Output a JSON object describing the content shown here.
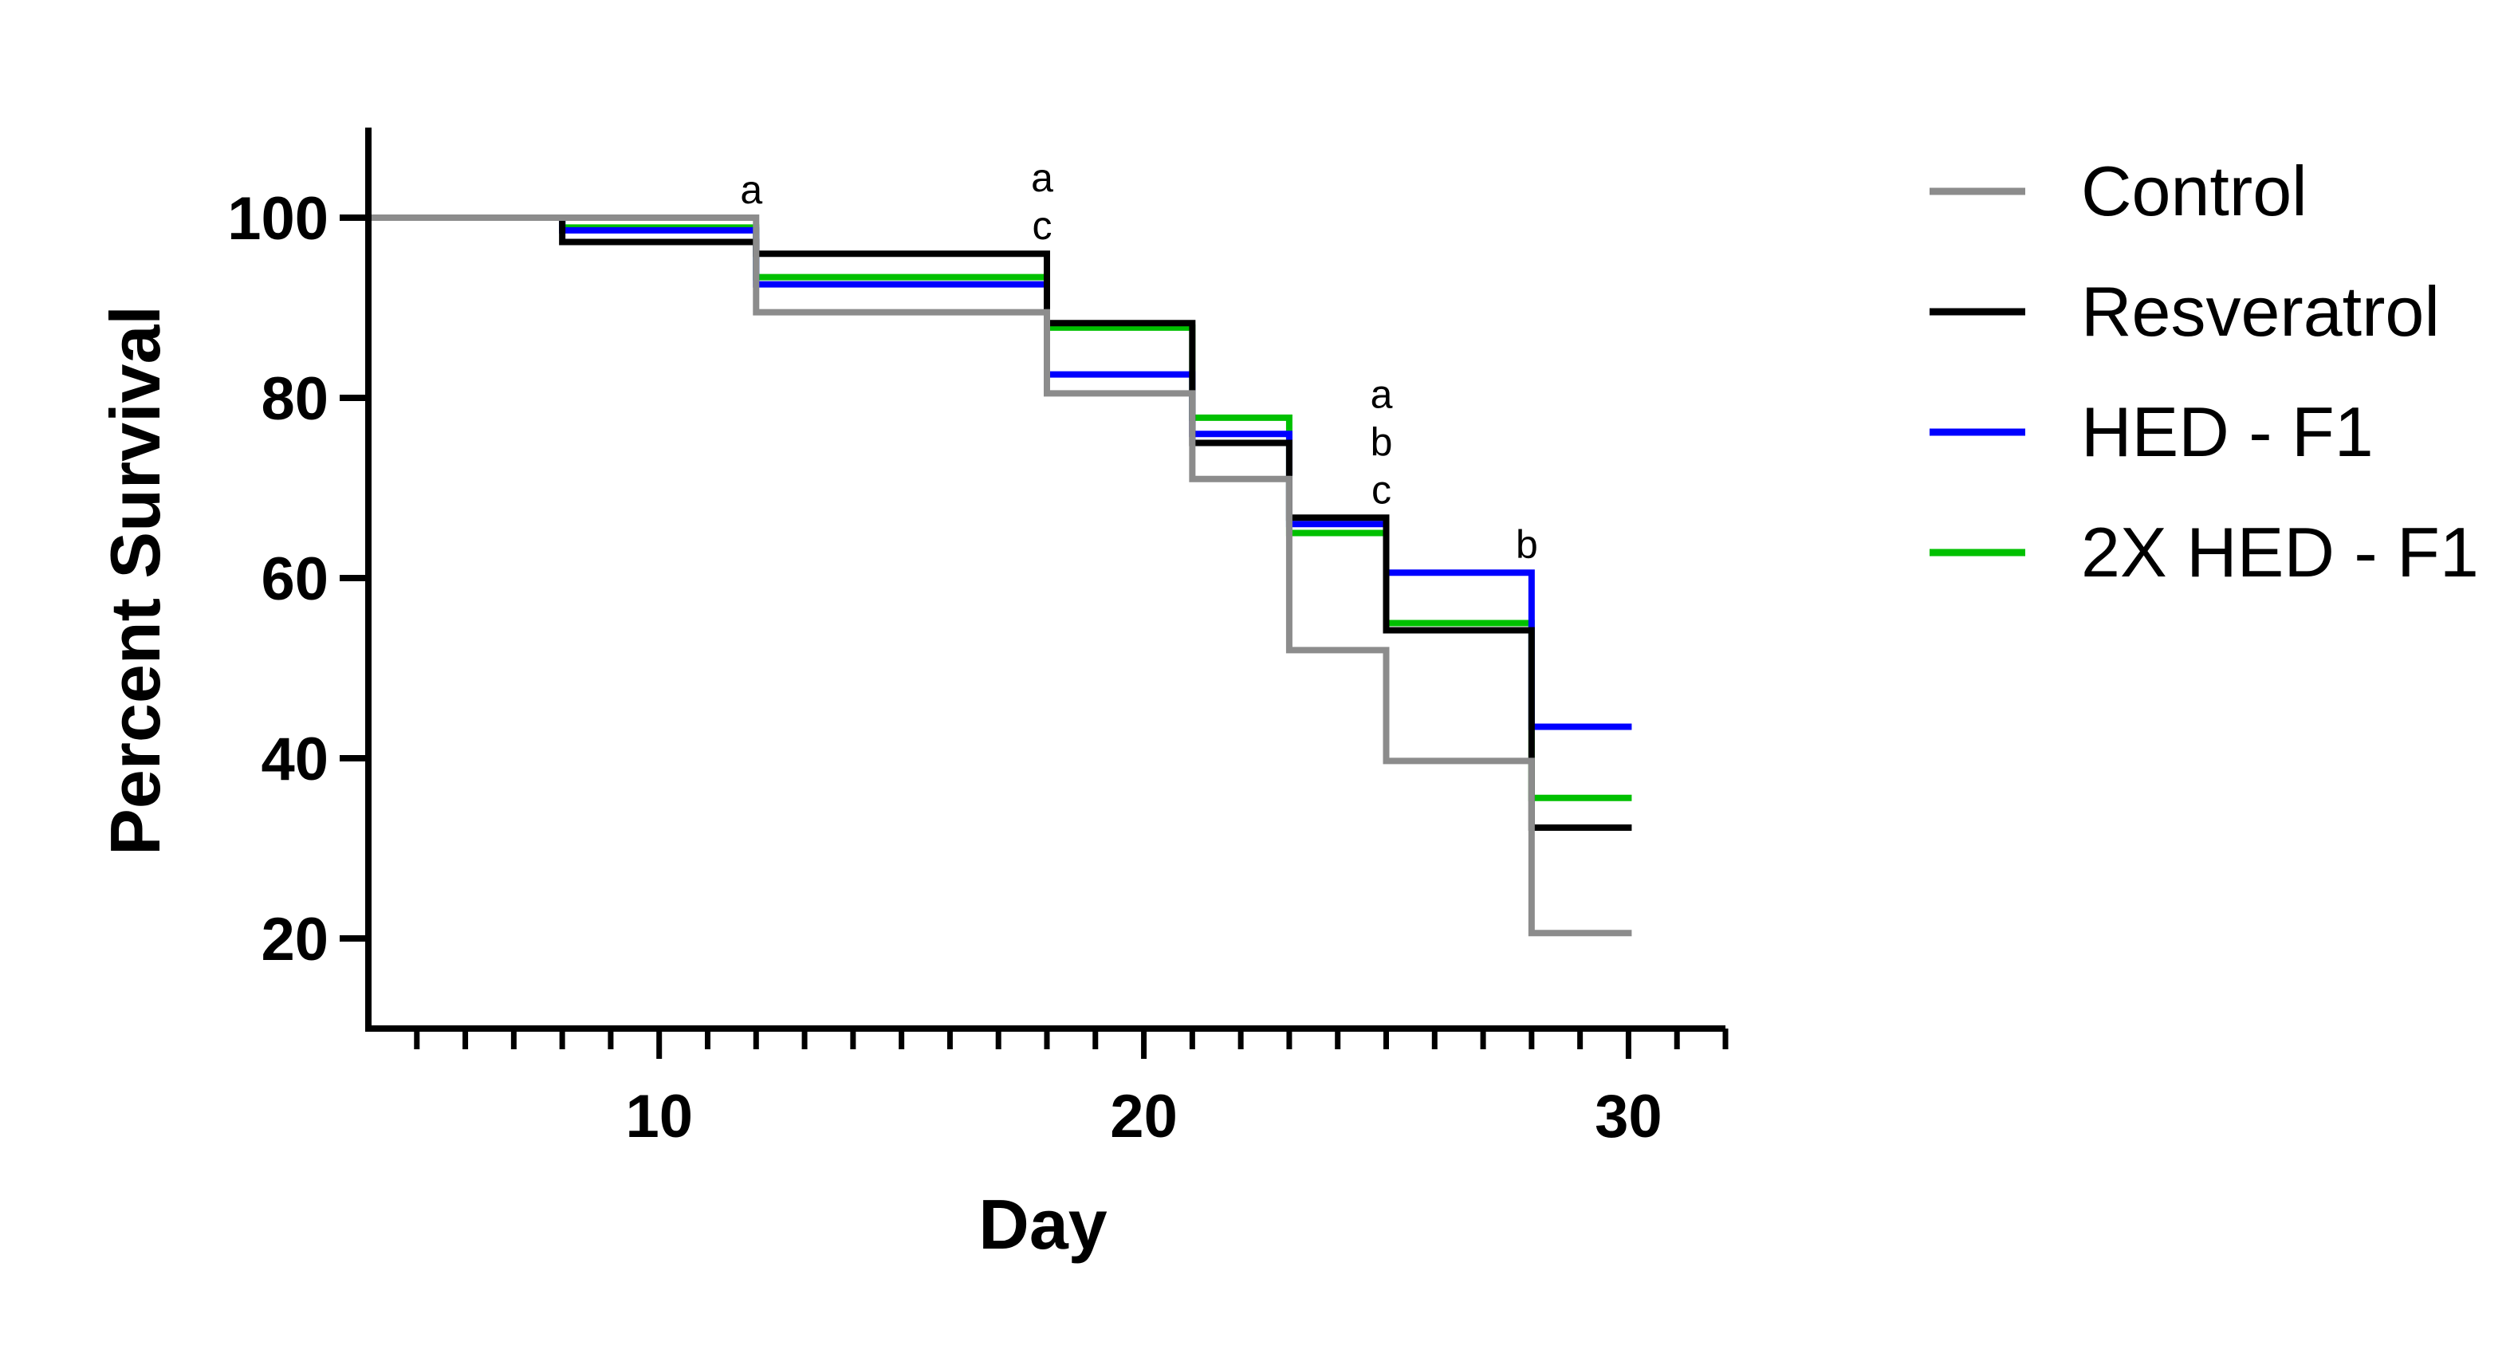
{
  "chart_data": {
    "type": "line",
    "subtype": "step",
    "title": "",
    "xlabel": "Day",
    "ylabel": "Percent Survival",
    "xlim": [
      4,
      32
    ],
    "ylim": [
      10,
      110
    ],
    "x_ticks": [
      10,
      20,
      30
    ],
    "x_minor_tick_step": 1,
    "y_ticks": [
      20,
      40,
      60,
      80,
      100
    ],
    "grid": false,
    "legend_position": "right",
    "series": [
      {
        "name": "Control",
        "color": "#8c8c8c",
        "x": [
          4,
          8,
          12,
          18,
          21,
          23,
          25,
          28,
          30
        ],
        "y": [
          100,
          100,
          89.5,
          80.5,
          71,
          52,
          39.7,
          20.6,
          20.6
        ]
      },
      {
        "name": "Resveratrol",
        "color": "#000000",
        "x": [
          4,
          8,
          12,
          18,
          21,
          23,
          25,
          28,
          30
        ],
        "y": [
          100,
          97.3,
          96,
          88.3,
          75,
          66.7,
          54.2,
          32.3,
          32.3
        ]
      },
      {
        "name": "HED - F1",
        "color": "#0000ff",
        "x": [
          4,
          8,
          12,
          18,
          21,
          23,
          25,
          28,
          30
        ],
        "y": [
          100,
          98.6,
          92.6,
          82.6,
          76,
          66,
          60.6,
          43.5,
          43.5
        ]
      },
      {
        "name": "2X HED - F1",
        "color": "#00c000",
        "x": [
          4,
          8,
          12,
          18,
          21,
          23,
          25,
          28,
          30
        ],
        "y": [
          100,
          98.9,
          93.4,
          87.8,
          77.8,
          65,
          55,
          35.6,
          35.6
        ]
      }
    ],
    "annotations": [
      {
        "x": 12,
        "letters": [
          "a"
        ]
      },
      {
        "x": 18,
        "letters": [
          "a",
          "c"
        ]
      },
      {
        "x": 25,
        "letters": [
          "a",
          "b",
          "c"
        ]
      },
      {
        "x": 28,
        "letters": [
          "b"
        ]
      }
    ]
  }
}
